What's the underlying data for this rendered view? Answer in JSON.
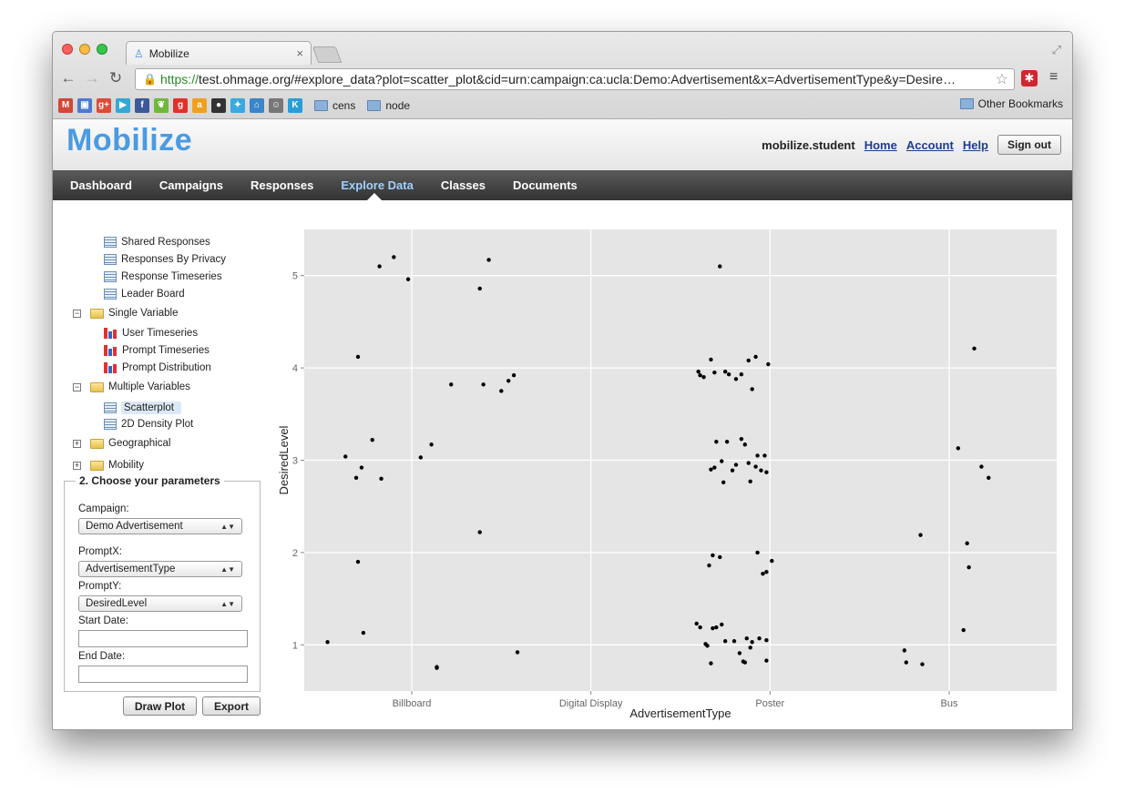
{
  "browser": {
    "tab_title": "Mobilize",
    "tab_close": "×",
    "url_scheme": "https://",
    "url_rest": "test.ohmage.org/#explore_data?plot=scatter_plot&cid=urn:campaign:ca:ucla:Demo:Advertisement&x=AdvertisementType&y=Desire…",
    "bookmarks": [
      {
        "icon": "gmail-icon",
        "label": "M",
        "color": "#d44638"
      },
      {
        "icon": "docs-icon",
        "label": "▣",
        "color": "#4a7bd0"
      },
      {
        "icon": "google-plus-icon",
        "label": "g+",
        "color": "#dd4b39"
      },
      {
        "icon": "play-icon",
        "label": "▶",
        "color": "#35a7d6"
      },
      {
        "icon": "facebook-icon",
        "label": "f",
        "color": "#3b5998"
      },
      {
        "icon": "leaf-icon",
        "label": "❦",
        "color": "#6fb83b"
      },
      {
        "icon": "grooveshark-icon",
        "label": "g",
        "color": "#e2312a"
      },
      {
        "icon": "amazon-icon",
        "label": "a",
        "color": "#f0a020"
      },
      {
        "icon": "github-icon",
        "label": "●",
        "color": "#333333"
      },
      {
        "icon": "twitter-icon",
        "label": "✦",
        "color": "#39a9e0"
      },
      {
        "icon": "home-icon",
        "label": "⌂",
        "color": "#3a86c8"
      },
      {
        "icon": "reddit-icon",
        "label": "☺",
        "color": "#777777"
      },
      {
        "icon": "k-icon",
        "label": "K",
        "color": "#2a9dd8"
      }
    ],
    "folders": [
      "cens",
      "node"
    ],
    "other_bookmarks": "Other Bookmarks"
  },
  "header": {
    "logo": "Mobilize",
    "username": "mobilize.student",
    "links": [
      "Home",
      "Account",
      "Help"
    ],
    "signout": "Sign out"
  },
  "nav": {
    "items": [
      "Dashboard",
      "Campaigns",
      "Responses",
      "Explore Data",
      "Classes",
      "Documents"
    ],
    "active": "Explore Data"
  },
  "sidebar": {
    "tree": [
      {
        "label": "Shared Responses",
        "icon": "grid-icon"
      },
      {
        "label": "Responses By Privacy",
        "icon": "grid-icon"
      },
      {
        "label": "Response Timeseries",
        "icon": "grid-icon"
      },
      {
        "label": "Leader Board",
        "icon": "grid-icon"
      },
      {
        "label": "Single Variable",
        "icon": "folder-icon",
        "toggle": "⊟"
      },
      {
        "label": "User Timeseries",
        "icon": "bar-chart-icon"
      },
      {
        "label": "Prompt Timeseries",
        "icon": "bar-chart-icon"
      },
      {
        "label": "Prompt Distribution",
        "icon": "bar-chart-icon"
      },
      {
        "label": "Multiple Variables",
        "icon": "folder-icon",
        "toggle": "⊟"
      },
      {
        "label": "Scatterplot",
        "icon": "grid-icon",
        "selected": true
      },
      {
        "label": "2D Density Plot",
        "icon": "grid-icon"
      },
      {
        "label": "Geographical",
        "icon": "folder-icon",
        "toggle": "⊞"
      },
      {
        "label": "Mobility",
        "icon": "folder-icon",
        "toggle": "⊞"
      }
    ],
    "params": {
      "legend": "2. Choose your parameters",
      "campaign_label": "Campaign:",
      "campaign_value": "Demo Advertisement",
      "promptx_label": "PromptX:",
      "promptx_value": "AdvertisementType",
      "prompty_label": "PromptY:",
      "prompty_value": "DesiredLevel",
      "start_label": "Start Date:",
      "start_value": "",
      "end_label": "End Date:",
      "end_value": ""
    },
    "draw_plot": "Draw Plot",
    "export": "Export"
  },
  "chart_data": {
    "type": "scatter",
    "xlabel": "AdvertisementType",
    "ylabel": "DesiredLevel",
    "categories": [
      "Billboard",
      "Digital Display",
      "Poster",
      "Bus"
    ],
    "yticks": [
      1,
      2,
      3,
      4,
      5
    ],
    "ylim": [
      0.5,
      5.5
    ],
    "grid": true,
    "background": "#e5e5e5",
    "points": [
      [
        0.53,
        1.03
      ],
      [
        0.73,
        1.13
      ],
      [
        0.7,
        1.9
      ],
      [
        0.72,
        2.92
      ],
      [
        0.69,
        2.81
      ],
      [
        0.63,
        3.04
      ],
      [
        0.78,
        3.22
      ],
      [
        0.83,
        2.8
      ],
      [
        0.7,
        4.12
      ],
      [
        0.82,
        5.1
      ],
      [
        0.9,
        5.2
      ],
      [
        0.98,
        4.96
      ],
      [
        1.05,
        3.03
      ],
      [
        1.11,
        3.17
      ],
      [
        1.14,
        0.75
      ],
      [
        1.14,
        0.76
      ],
      [
        1.22,
        3.82
      ],
      [
        1.38,
        2.22
      ],
      [
        1.38,
        4.86
      ],
      [
        1.4,
        3.82
      ],
      [
        1.43,
        5.17
      ],
      [
        1.5,
        3.75
      ],
      [
        1.54,
        3.86
      ],
      [
        1.57,
        3.92
      ],
      [
        1.59,
        0.92
      ],
      [
        2.59,
        1.23
      ],
      [
        2.61,
        1.19
      ],
      [
        2.64,
        1.01
      ],
      [
        2.65,
        0.99
      ],
      [
        2.67,
        0.8
      ],
      [
        2.68,
        1.18
      ],
      [
        2.7,
        1.19
      ],
      [
        2.73,
        1.22
      ],
      [
        2.75,
        1.04
      ],
      [
        2.8,
        1.04
      ],
      [
        2.83,
        0.91
      ],
      [
        2.85,
        0.82
      ],
      [
        2.86,
        0.81
      ],
      [
        2.87,
        1.07
      ],
      [
        2.89,
        0.97
      ],
      [
        2.9,
        1.03
      ],
      [
        2.94,
        1.07
      ],
      [
        2.98,
        1.05
      ],
      [
        2.98,
        0.83
      ],
      [
        2.66,
        1.86
      ],
      [
        2.68,
        1.97
      ],
      [
        2.72,
        1.95
      ],
      [
        2.93,
        2.0
      ],
      [
        2.96,
        1.77
      ],
      [
        2.98,
        1.79
      ],
      [
        3.01,
        1.91
      ],
      [
        2.67,
        2.9
      ],
      [
        2.69,
        2.92
      ],
      [
        2.7,
        3.2
      ],
      [
        2.73,
        2.99
      ],
      [
        2.74,
        2.76
      ],
      [
        2.76,
        3.2
      ],
      [
        2.79,
        2.89
      ],
      [
        2.81,
        2.95
      ],
      [
        2.84,
        3.23
      ],
      [
        2.86,
        3.17
      ],
      [
        2.88,
        2.97
      ],
      [
        2.89,
        2.77
      ],
      [
        2.92,
        2.93
      ],
      [
        2.93,
        3.05
      ],
      [
        2.95,
        2.89
      ],
      [
        2.97,
        3.05
      ],
      [
        2.98,
        2.87
      ],
      [
        2.6,
        3.96
      ],
      [
        2.61,
        3.92
      ],
      [
        2.63,
        3.9
      ],
      [
        2.67,
        4.09
      ],
      [
        2.69,
        3.95
      ],
      [
        2.75,
        3.96
      ],
      [
        2.77,
        3.93
      ],
      [
        2.81,
        3.88
      ],
      [
        2.84,
        3.93
      ],
      [
        2.88,
        4.08
      ],
      [
        2.9,
        3.77
      ],
      [
        2.92,
        4.12
      ],
      [
        2.99,
        4.04
      ],
      [
        2.72,
        5.1
      ],
      [
        3.75,
        0.94
      ],
      [
        3.76,
        0.81
      ],
      [
        3.85,
        0.79
      ],
      [
        3.84,
        2.19
      ],
      [
        4.05,
        3.13
      ],
      [
        4.08,
        1.16
      ],
      [
        4.1,
        2.1
      ],
      [
        4.11,
        1.84
      ],
      [
        4.14,
        4.21
      ],
      [
        4.18,
        2.93
      ],
      [
        4.22,
        2.81
      ]
    ]
  }
}
